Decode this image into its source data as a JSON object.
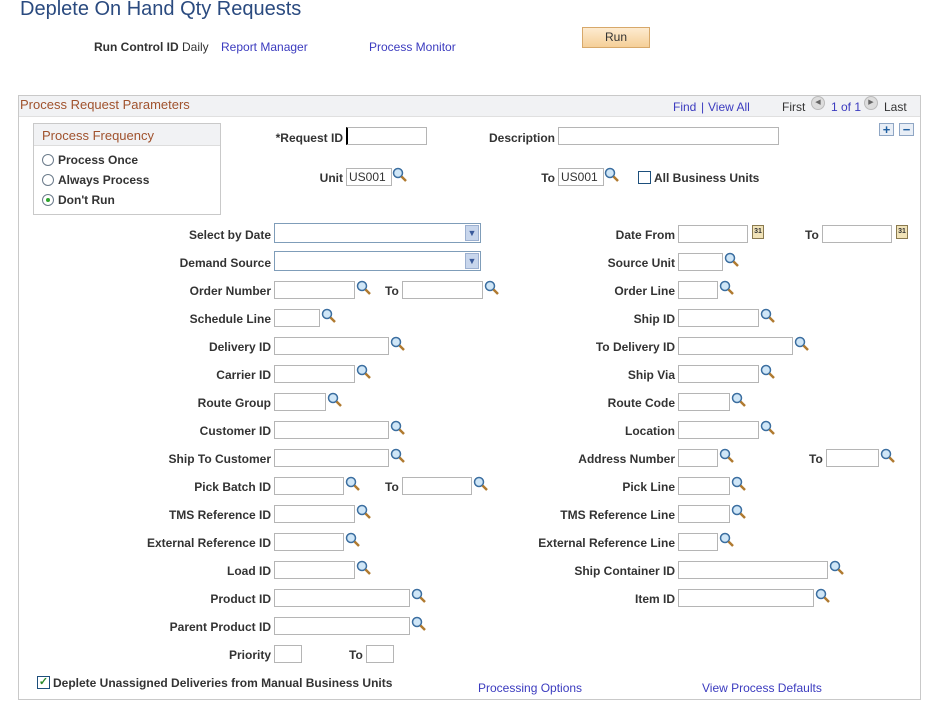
{
  "page": {
    "title": "Deplete On Hand Qty Requests"
  },
  "runbar": {
    "run_control_label": "Run Control ID",
    "run_control_value": "Daily",
    "report_manager": "Report Manager",
    "process_monitor": "Process Monitor",
    "run": "Run"
  },
  "panel": {
    "title": "Process Request Parameters",
    "find": "Find",
    "sep": "|",
    "view_all": "View All",
    "first": "First",
    "count": "1 of 1",
    "last": "Last",
    "add": "+",
    "remove": "−"
  },
  "frequency": {
    "title": "Process Frequency",
    "options": [
      "Process Once",
      "Always Process",
      "Don't Run"
    ],
    "selected": "Don't Run"
  },
  "header_fields": {
    "request_id_label": "*Request ID",
    "request_id": "",
    "description_label": "Description",
    "description": "",
    "unit_label": "Unit",
    "unit": "US001",
    "to_label": "To",
    "unit_to": "US001",
    "all_bu_label": "All Business Units",
    "all_bu_checked": false
  },
  "fields": [
    {
      "l": "Select by Date",
      "type": "select",
      "value": "",
      "r": "Date From",
      "rtype": "date",
      "rvalue": "",
      "r2": "To",
      "r2type": "date"
    },
    {
      "l": "Demand Source",
      "type": "select",
      "value": "",
      "r": "Source Unit"
    },
    {
      "l": "Order Number",
      "to": "To",
      "r": "Order Line"
    },
    {
      "l": "Schedule Line",
      "r": "Ship ID"
    },
    {
      "l": "Delivery ID",
      "r": "To Delivery ID"
    },
    {
      "l": "Carrier ID",
      "r": "Ship Via"
    },
    {
      "l": "Route Group",
      "r": "Route Code"
    },
    {
      "l": "Customer ID",
      "r": "Location"
    },
    {
      "l": "Ship To Customer",
      "r": "Address Number",
      "r2": "To"
    },
    {
      "l": "Pick Batch ID",
      "to": "To",
      "r": "Pick Line"
    },
    {
      "l": "TMS Reference ID",
      "r": "TMS Reference Line"
    },
    {
      "l": "External Reference ID",
      "r": "External Reference Line"
    },
    {
      "l": "Load ID",
      "r": "Ship Container ID"
    },
    {
      "l": "Product ID",
      "r": "Item ID"
    },
    {
      "l": "Parent Product ID"
    },
    {
      "l": "Priority",
      "to": "To"
    }
  ],
  "footer": {
    "deplete_label": "Deplete Unassigned Deliveries from Manual Business Units",
    "deplete_checked": true,
    "processing_options": "Processing Options",
    "view_defaults": "View Process Defaults"
  }
}
